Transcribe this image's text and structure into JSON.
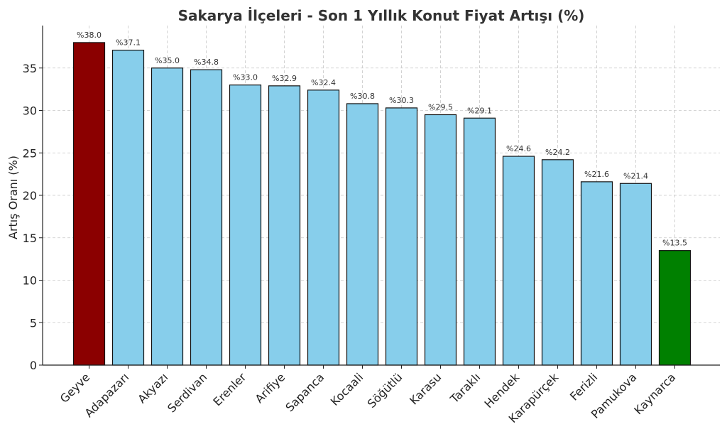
{
  "chart_data": {
    "type": "bar",
    "title": "Sakarya İlçeleri - Son 1 Yıllık Konut Fiyat Artışı (%)",
    "xlabel": "",
    "ylabel": "Artış Oranı (%)",
    "ylim": [
      0,
      40
    ],
    "yticks": [
      0,
      5,
      10,
      15,
      20,
      25,
      30,
      35
    ],
    "grid": true,
    "categories": [
      "Geyve",
      "Adapazarı",
      "Akyazı",
      "Serdivan",
      "Erenler",
      "Arifiye",
      "Sapanca",
      "Kocaali",
      "Söğütlü",
      "Karasu",
      "Taraklı",
      "Hendek",
      "Karapürçek",
      "Ferizli",
      "Pamukova",
      "Kaynarca"
    ],
    "values": [
      38.0,
      37.1,
      35.0,
      34.8,
      33.0,
      32.9,
      32.4,
      30.8,
      30.3,
      29.5,
      29.1,
      24.6,
      24.2,
      21.6,
      21.4,
      13.5
    ],
    "data_labels": [
      "%38.0",
      "%37.1",
      "%35.0",
      "%34.8",
      "%33.0",
      "%32.9",
      "%32.4",
      "%30.8",
      "%30.3",
      "%29.5",
      "%29.1",
      "%24.6",
      "%24.2",
      "%21.6",
      "%21.4",
      "%13.5"
    ],
    "colors": {
      "highest": "#8b0000",
      "default": "#87ceeb",
      "lowest": "#008000"
    }
  }
}
